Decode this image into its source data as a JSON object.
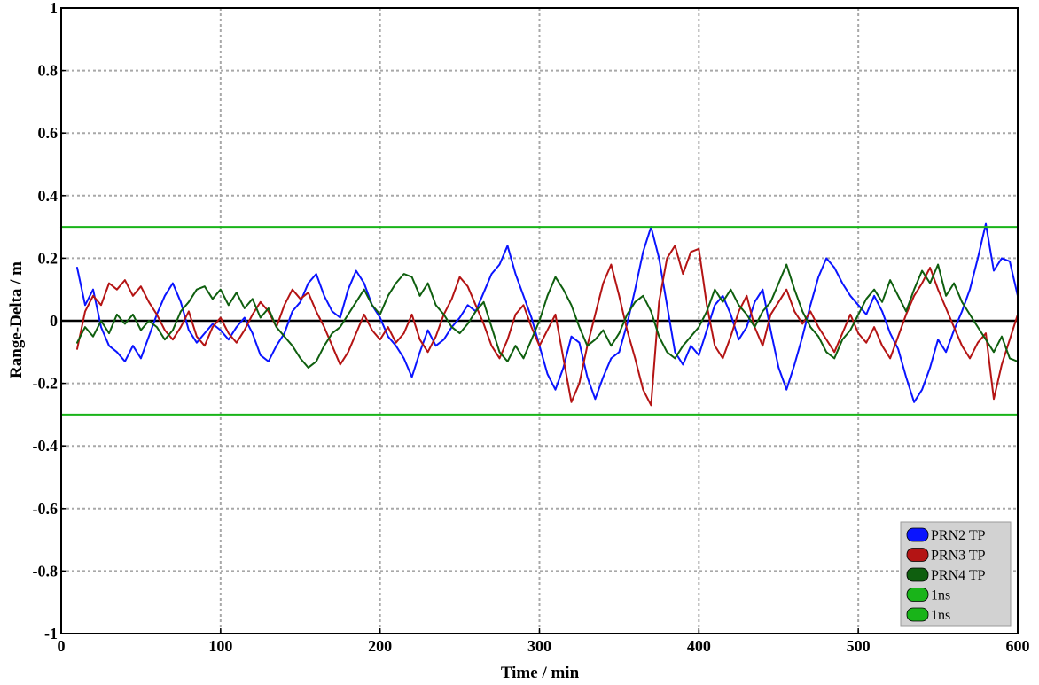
{
  "chart_data": {
    "type": "line",
    "title": "",
    "xlabel": "Time /  min",
    "ylabel": "Range-Delta /  m",
    "xlim": [
      0,
      600
    ],
    "ylim": [
      -1,
      1
    ],
    "xticks": [
      0,
      100,
      200,
      300,
      400,
      500,
      600
    ],
    "xtick_labels": [
      "0",
      "100",
      "200",
      "300",
      "400",
      "500",
      "600"
    ],
    "yticks": [
      -1,
      -0.8,
      -0.6,
      -0.4,
      -0.2,
      0,
      0.2,
      0.4,
      0.6,
      0.8,
      1
    ],
    "ytick_labels": [
      "-1",
      "-0.8",
      "-0.6",
      "-0.4",
      "-0.2",
      "0",
      "0.2",
      "0.4",
      "0.6",
      "0.8",
      "1"
    ],
    "grid": true,
    "legend_position": "bottom-right",
    "zero_line": {
      "y": 0,
      "color": "#000000"
    },
    "series": [
      {
        "name": "PRN2 TP",
        "color": "#0a14ff",
        "x": [
          10,
          15,
          20,
          25,
          30,
          35,
          40,
          45,
          50,
          55,
          60,
          65,
          70,
          75,
          80,
          85,
          90,
          95,
          100,
          105,
          110,
          115,
          120,
          125,
          130,
          135,
          140,
          145,
          150,
          155,
          160,
          165,
          170,
          175,
          180,
          185,
          190,
          195,
          200,
          205,
          210,
          215,
          220,
          225,
          230,
          235,
          240,
          245,
          250,
          255,
          260,
          265,
          270,
          275,
          280,
          285,
          290,
          295,
          300,
          305,
          310,
          315,
          320,
          325,
          330,
          335,
          340,
          345,
          350,
          355,
          360,
          365,
          370,
          375,
          380,
          385,
          390,
          395,
          400,
          405,
          410,
          415,
          420,
          425,
          430,
          435,
          440,
          445,
          450,
          455,
          460,
          465,
          470,
          475,
          480,
          485,
          490,
          495,
          500,
          505,
          510,
          515,
          520,
          525,
          530,
          535,
          540,
          545,
          550,
          555,
          560,
          565,
          570,
          575,
          580,
          585,
          590,
          595,
          600
        ],
        "values": [
          0.17,
          0.05,
          0.1,
          -0.02,
          -0.08,
          -0.1,
          -0.13,
          -0.08,
          -0.12,
          -0.05,
          0.02,
          0.08,
          0.12,
          0.06,
          -0.03,
          -0.07,
          -0.04,
          -0.01,
          -0.03,
          -0.06,
          -0.02,
          0.01,
          -0.04,
          -0.11,
          -0.13,
          -0.08,
          -0.04,
          0.03,
          0.06,
          0.12,
          0.15,
          0.08,
          0.03,
          0.01,
          0.1,
          0.16,
          0.12,
          0.05,
          0.01,
          -0.05,
          -0.08,
          -0.12,
          -0.18,
          -0.1,
          -0.03,
          -0.08,
          -0.06,
          -0.02,
          0.01,
          0.05,
          0.03,
          0.09,
          0.15,
          0.18,
          0.24,
          0.15,
          0.08,
          0.01,
          -0.08,
          -0.17,
          -0.22,
          -0.15,
          -0.05,
          -0.07,
          -0.18,
          -0.25,
          -0.18,
          -0.12,
          -0.1,
          -0.01,
          0.1,
          0.22,
          0.3,
          0.2,
          0.05,
          -0.1,
          -0.14,
          -0.08,
          -0.11,
          -0.03,
          0.05,
          0.08,
          0.02,
          -0.06,
          -0.02,
          0.06,
          0.1,
          -0.03,
          -0.15,
          -0.22,
          -0.14,
          -0.05,
          0.05,
          0.14,
          0.2,
          0.17,
          0.12,
          0.08,
          0.05,
          0.02,
          0.08,
          0.03,
          -0.04,
          -0.09,
          -0.18,
          -0.26,
          -0.22,
          -0.15,
          -0.06,
          -0.1,
          -0.03,
          0.03,
          0.1,
          0.2,
          0.31,
          0.16,
          0.2,
          0.19,
          0.08
        ]
      },
      {
        "name": "PRN3 TP",
        "color": "#b41414",
        "x": [
          10,
          15,
          20,
          25,
          30,
          35,
          40,
          45,
          50,
          55,
          60,
          65,
          70,
          75,
          80,
          85,
          90,
          95,
          100,
          105,
          110,
          115,
          120,
          125,
          130,
          135,
          140,
          145,
          150,
          155,
          160,
          165,
          170,
          175,
          180,
          185,
          190,
          195,
          200,
          205,
          210,
          215,
          220,
          225,
          230,
          235,
          240,
          245,
          250,
          255,
          260,
          265,
          270,
          275,
          280,
          285,
          290,
          295,
          300,
          305,
          310,
          315,
          320,
          325,
          330,
          335,
          340,
          345,
          350,
          355,
          360,
          365,
          370,
          375,
          380,
          385,
          390,
          395,
          400,
          405,
          410,
          415,
          420,
          425,
          430,
          435,
          440,
          445,
          450,
          455,
          460,
          465,
          470,
          475,
          480,
          485,
          490,
          495,
          500,
          505,
          510,
          515,
          520,
          525,
          530,
          535,
          540,
          545,
          550,
          555,
          560,
          565,
          570,
          575,
          580,
          585,
          590,
          595,
          600
        ],
        "values": [
          -0.09,
          0.03,
          0.08,
          0.05,
          0.12,
          0.1,
          0.13,
          0.08,
          0.11,
          0.06,
          0.02,
          -0.03,
          -0.06,
          -0.02,
          0.03,
          -0.05,
          -0.08,
          -0.02,
          0.01,
          -0.04,
          -0.07,
          -0.03,
          0.02,
          0.06,
          0.03,
          -0.02,
          0.05,
          0.1,
          0.07,
          0.09,
          0.03,
          -0.02,
          -0.08,
          -0.14,
          -0.1,
          -0.04,
          0.02,
          -0.03,
          -0.06,
          -0.02,
          -0.07,
          -0.04,
          0.02,
          -0.06,
          -0.1,
          -0.05,
          0.02,
          0.07,
          0.14,
          0.11,
          0.05,
          -0.01,
          -0.08,
          -0.12,
          -0.06,
          0.02,
          0.05,
          -0.02,
          -0.08,
          -0.03,
          0.02,
          -0.12,
          -0.26,
          -0.2,
          -0.08,
          0.02,
          0.12,
          0.18,
          0.08,
          -0.03,
          -0.12,
          -0.22,
          -0.27,
          0.06,
          0.2,
          0.24,
          0.15,
          0.22,
          0.23,
          0.05,
          -0.08,
          -0.12,
          -0.05,
          0.03,
          0.08,
          -0.02,
          -0.08,
          0.02,
          0.06,
          0.1,
          0.03,
          -0.01,
          0.03,
          -0.02,
          -0.06,
          -0.1,
          -0.04,
          0.02,
          -0.04,
          -0.07,
          -0.02,
          -0.08,
          -0.12,
          -0.05,
          0.02,
          0.08,
          0.12,
          0.17,
          0.1,
          0.04,
          -0.02,
          -0.08,
          -0.12,
          -0.07,
          -0.04,
          -0.25,
          -0.14,
          -0.06,
          0.02
        ]
      },
      {
        "name": "PRN4 TP",
        "color": "#0f5f0f",
        "x": [
          10,
          15,
          20,
          25,
          30,
          35,
          40,
          45,
          50,
          55,
          60,
          65,
          70,
          75,
          80,
          85,
          90,
          95,
          100,
          105,
          110,
          115,
          120,
          125,
          130,
          135,
          140,
          145,
          150,
          155,
          160,
          165,
          170,
          175,
          180,
          185,
          190,
          195,
          200,
          205,
          210,
          215,
          220,
          225,
          230,
          235,
          240,
          245,
          250,
          255,
          260,
          265,
          270,
          275,
          280,
          285,
          290,
          295,
          300,
          305,
          310,
          315,
          320,
          325,
          330,
          335,
          340,
          345,
          350,
          355,
          360,
          365,
          370,
          375,
          380,
          385,
          390,
          395,
          400,
          405,
          410,
          415,
          420,
          425,
          430,
          435,
          440,
          445,
          450,
          455,
          460,
          465,
          470,
          475,
          480,
          485,
          490,
          495,
          500,
          505,
          510,
          515,
          520,
          525,
          530,
          535,
          540,
          545,
          550,
          555,
          560,
          565,
          570,
          575,
          580,
          585,
          590,
          595,
          600
        ],
        "values": [
          -0.07,
          -0.02,
          -0.05,
          0.0,
          -0.04,
          0.02,
          -0.01,
          0.02,
          -0.03,
          0.0,
          -0.02,
          -0.06,
          -0.03,
          0.03,
          0.06,
          0.1,
          0.11,
          0.07,
          0.1,
          0.05,
          0.09,
          0.04,
          0.07,
          0.01,
          0.04,
          -0.02,
          -0.05,
          -0.08,
          -0.12,
          -0.15,
          -0.13,
          -0.08,
          -0.04,
          -0.02,
          0.02,
          0.06,
          0.1,
          0.05,
          0.02,
          0.08,
          0.12,
          0.15,
          0.14,
          0.08,
          0.12,
          0.05,
          0.02,
          -0.02,
          -0.04,
          -0.01,
          0.03,
          0.06,
          -0.02,
          -0.1,
          -0.13,
          -0.08,
          -0.12,
          -0.06,
          0.0,
          0.08,
          0.14,
          0.1,
          0.05,
          -0.02,
          -0.08,
          -0.06,
          -0.03,
          -0.08,
          -0.04,
          0.02,
          0.06,
          0.08,
          0.03,
          -0.05,
          -0.1,
          -0.12,
          -0.08,
          -0.05,
          -0.02,
          0.03,
          0.1,
          0.06,
          0.1,
          0.05,
          0.02,
          -0.02,
          0.03,
          0.06,
          0.12,
          0.18,
          0.1,
          0.03,
          -0.02,
          -0.05,
          -0.1,
          -0.12,
          -0.06,
          -0.03,
          0.02,
          0.07,
          0.1,
          0.06,
          0.13,
          0.08,
          0.03,
          0.1,
          0.16,
          0.12,
          0.18,
          0.08,
          0.12,
          0.06,
          0.02,
          -0.02,
          -0.06,
          -0.1,
          -0.05,
          -0.12,
          -0.13
        ]
      },
      {
        "name": "1ns",
        "color": "#19b419",
        "x": [
          0,
          600
        ],
        "values": [
          0.3,
          0.3
        ]
      },
      {
        "name": "1ns",
        "color": "#19b419",
        "x": [
          0,
          600
        ],
        "values": [
          -0.3,
          -0.3
        ]
      }
    ]
  }
}
